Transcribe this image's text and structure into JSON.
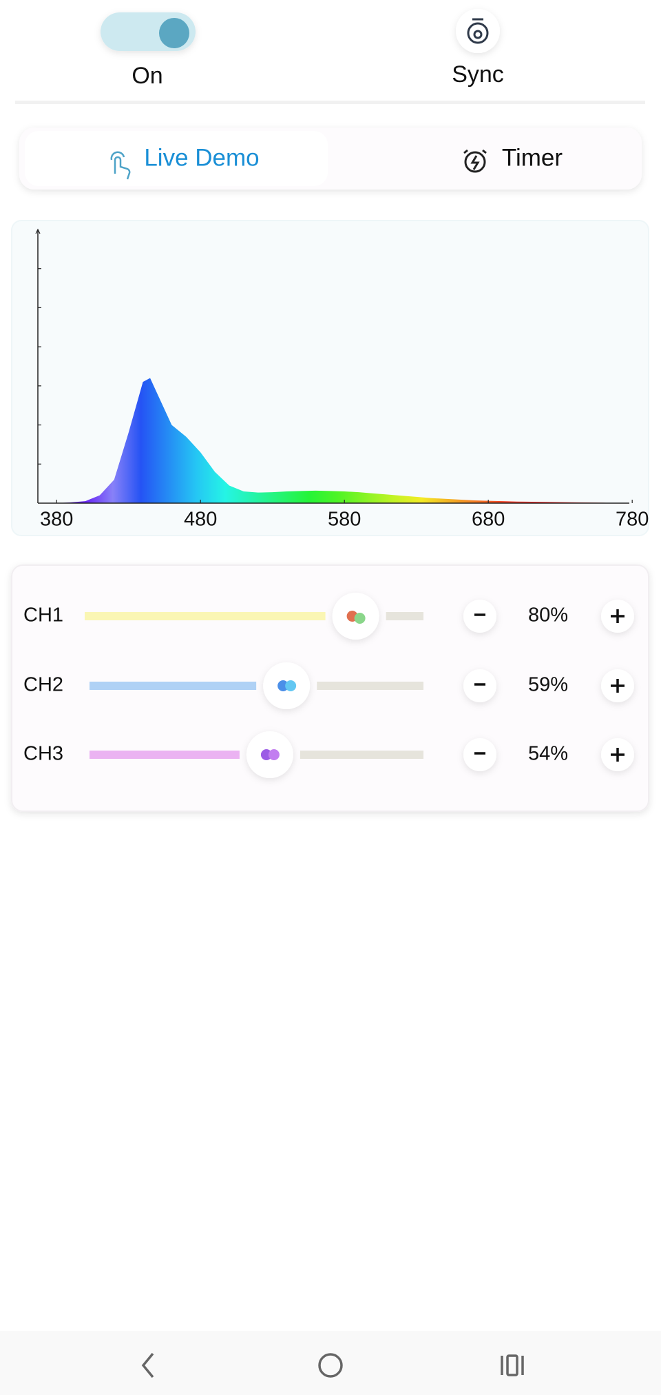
{
  "status": {
    "power_label": "On",
    "sync_label": "Sync"
  },
  "tabs": [
    "Live Demo",
    "Timer"
  ],
  "chart_data": {
    "type": "area",
    "x": [
      380,
      390,
      400,
      410,
      420,
      430,
      440,
      445,
      450,
      460,
      470,
      480,
      490,
      500,
      510,
      520,
      530,
      540,
      550,
      560,
      570,
      580,
      590,
      600,
      610,
      620,
      630,
      640,
      650,
      660,
      670,
      680,
      690,
      700,
      720,
      740,
      760,
      770
    ],
    "values": [
      0,
      0.02,
      0.05,
      0.2,
      0.6,
      1.8,
      3.1,
      3.2,
      2.8,
      2.0,
      1.7,
      1.3,
      0.8,
      0.45,
      0.3,
      0.27,
      0.28,
      0.3,
      0.31,
      0.32,
      0.31,
      0.3,
      0.28,
      0.25,
      0.22,
      0.19,
      0.16,
      0.13,
      0.11,
      0.09,
      0.07,
      0.06,
      0.05,
      0.04,
      0.03,
      0.02,
      0.01,
      0
    ],
    "xlim": [
      367,
      778
    ],
    "xticks": [
      380,
      480,
      580,
      680,
      780
    ],
    "ylim": [
      0,
      7
    ],
    "yticks": [
      1,
      2,
      3,
      4,
      5,
      6
    ]
  },
  "channels": {
    "range": [
      0,
      100
    ],
    "items": [
      {
        "name": "CH1",
        "value": 80,
        "value_label": "80%",
        "color": "#faf6b4"
      },
      {
        "name": "CH2",
        "value": 59,
        "value_label": "59%",
        "color": "#afd1f5"
      },
      {
        "name": "CH3",
        "value": 54,
        "value_label": "54%",
        "color": "#ebb3f2"
      }
    ]
  }
}
